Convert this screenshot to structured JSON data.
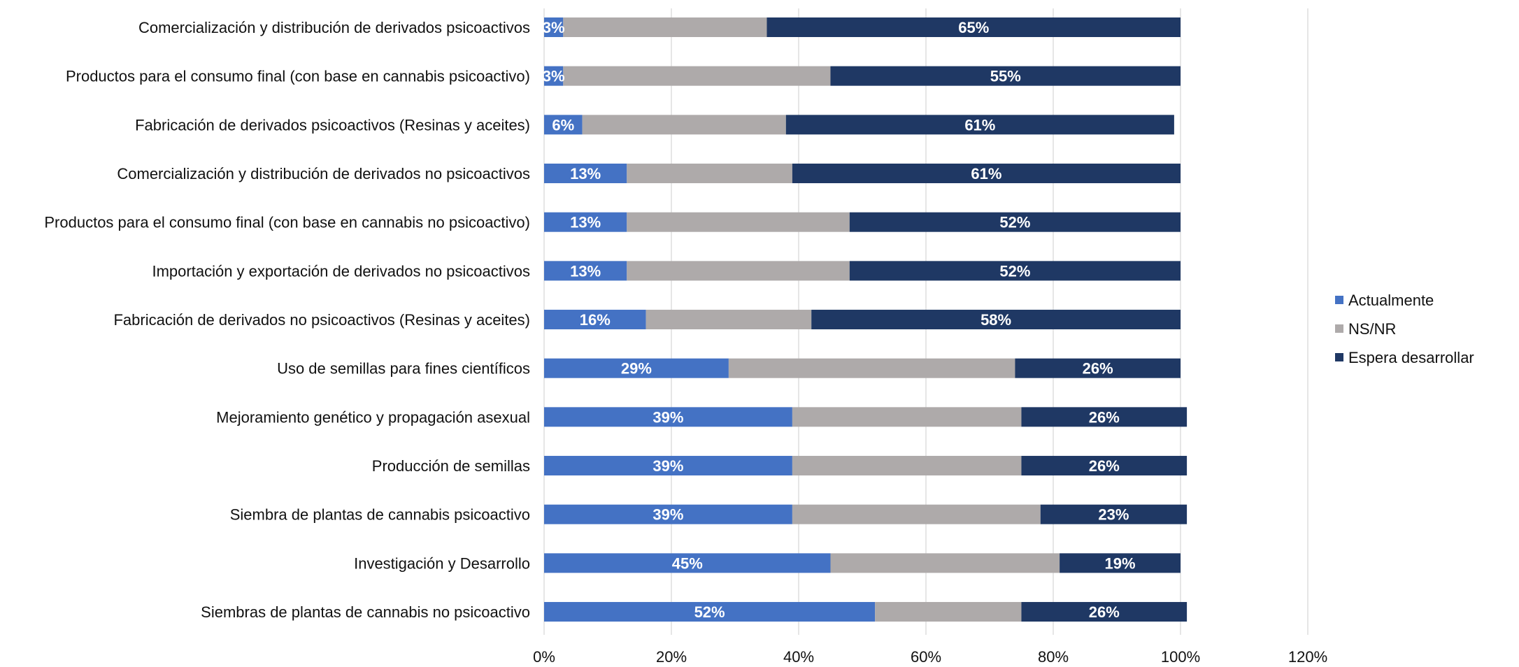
{
  "chart_data": {
    "type": "bar",
    "orientation": "horizontal",
    "stacked": true,
    "categories": [
      "Comercialización y distribución de derivados psicoactivos",
      "Productos para el consumo final (con base en cannabis psicoactivo)",
      "Fabricación de derivados psicoactivos (Resinas y aceites)",
      "Comercialización y distribución de derivados no psicoactivos",
      "Productos para el consumo final (con base en cannabis no psicoactivo)",
      "Importación y exportación de derivados no psicoactivos",
      "Fabricación de derivados no psicoactivos (Resinas y aceites)",
      "Uso de semillas para fines científicos",
      "Mejoramiento genético y propagación asexual",
      "Producción de semillas",
      "Siembra de plantas de cannabis psicoactivo",
      "Investigación y Desarrollo",
      "Siembras de plantas de cannabis no psicoactivo"
    ],
    "series": [
      {
        "name": "Actualmente",
        "color": "#4472C4",
        "values": [
          3,
          3,
          6,
          13,
          13,
          13,
          16,
          29,
          39,
          39,
          39,
          45,
          52
        ],
        "labels": [
          "3%",
          "3%",
          "6%",
          "13%",
          "13%",
          "13%",
          "16%",
          "29%",
          "39%",
          "39%",
          "39%",
          "45%",
          "52%"
        ]
      },
      {
        "name": "NS/NR",
        "color": "#AEAAAA",
        "values": [
          32,
          42,
          32,
          26,
          35,
          35,
          26,
          45,
          36,
          36,
          39,
          36,
          23
        ],
        "labels": [
          "",
          "",
          "",
          "",
          "",
          "",
          "",
          "",
          "",
          "",
          "",
          "",
          ""
        ]
      },
      {
        "name": "Espera desarrollar",
        "color": "#1F3864",
        "values": [
          65,
          55,
          61,
          61,
          52,
          52,
          58,
          26,
          26,
          26,
          23,
          19,
          26
        ],
        "labels": [
          "65%",
          "55%",
          "61%",
          "61%",
          "52%",
          "52%",
          "58%",
          "26%",
          "26%",
          "26%",
          "23%",
          "19%",
          "26%"
        ]
      }
    ],
    "xlim": [
      0,
      120
    ],
    "xticks": [
      "0%",
      "20%",
      "40%",
      "60%",
      "80%",
      "100%",
      "120%"
    ],
    "grid": true,
    "legend_position": "right"
  }
}
